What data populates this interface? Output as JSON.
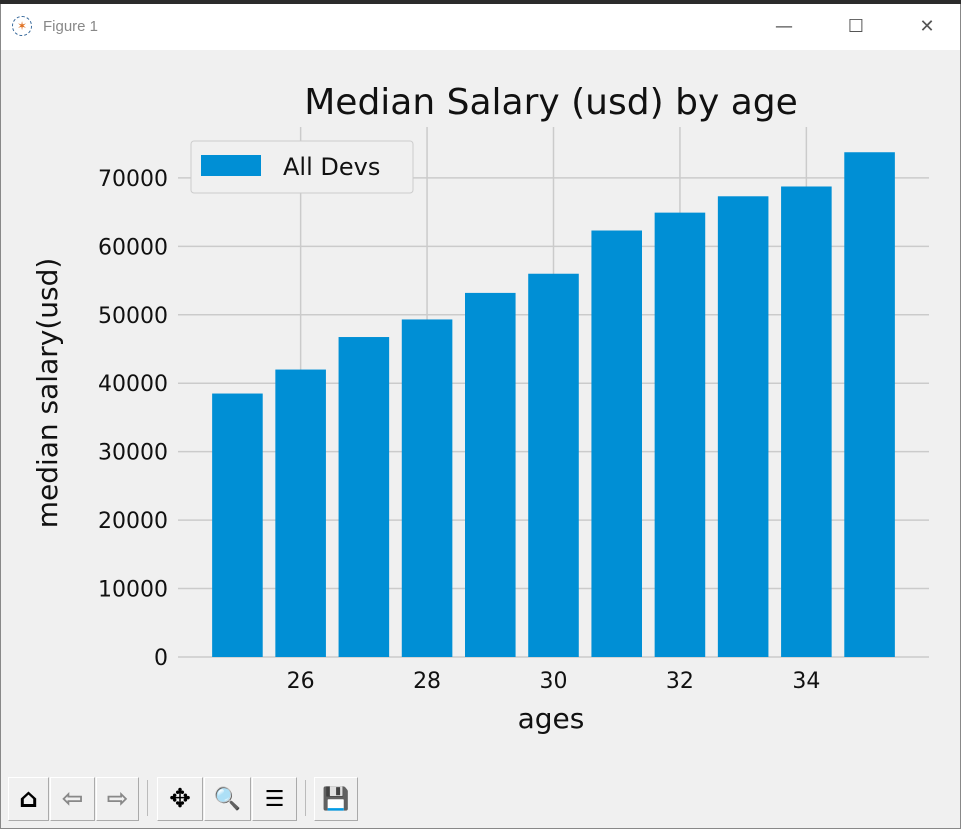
{
  "window": {
    "title": "Figure 1",
    "controls": {
      "minimize": "—",
      "maximize": "☐",
      "close": "✕"
    }
  },
  "toolbar": [
    {
      "name": "home",
      "icon": "home-icon",
      "glyph": "⌂"
    },
    {
      "name": "back",
      "icon": "arrow-left-icon",
      "glyph": "⇦"
    },
    {
      "name": "forward",
      "icon": "arrow-right-icon",
      "glyph": "⇨"
    },
    {
      "name": "pan",
      "icon": "move-icon",
      "glyph": "✥"
    },
    {
      "name": "zoom",
      "icon": "magnifier-icon",
      "glyph": "🔍"
    },
    {
      "name": "configure-subplots",
      "icon": "sliders-icon",
      "glyph": "☰"
    },
    {
      "name": "save",
      "icon": "floppy-disk-icon",
      "glyph": "💾"
    }
  ],
  "chart_data": {
    "type": "bar",
    "title": "Median Salary (usd) by age",
    "xlabel": "ages",
    "ylabel": "median salary(usd)",
    "x": [
      25,
      26,
      27,
      28,
      29,
      30,
      31,
      32,
      33,
      34,
      35
    ],
    "series": [
      {
        "name": "All Devs",
        "values": [
          38496,
          42000,
          46752,
          49320,
          53200,
          56000,
          62316,
          64928,
          67317,
          68748,
          73752
        ],
        "color": "#008fd5"
      }
    ],
    "xticks": [
      26,
      28,
      30,
      32,
      34
    ],
    "yticks": [
      0,
      10000,
      20000,
      30000,
      40000,
      50000,
      60000,
      70000
    ],
    "xlim": [
      24.06,
      35.94
    ],
    "ylim": [
      0,
      77440
    ],
    "grid": true,
    "legend": "top-left",
    "style": "fivethirtyeight"
  }
}
